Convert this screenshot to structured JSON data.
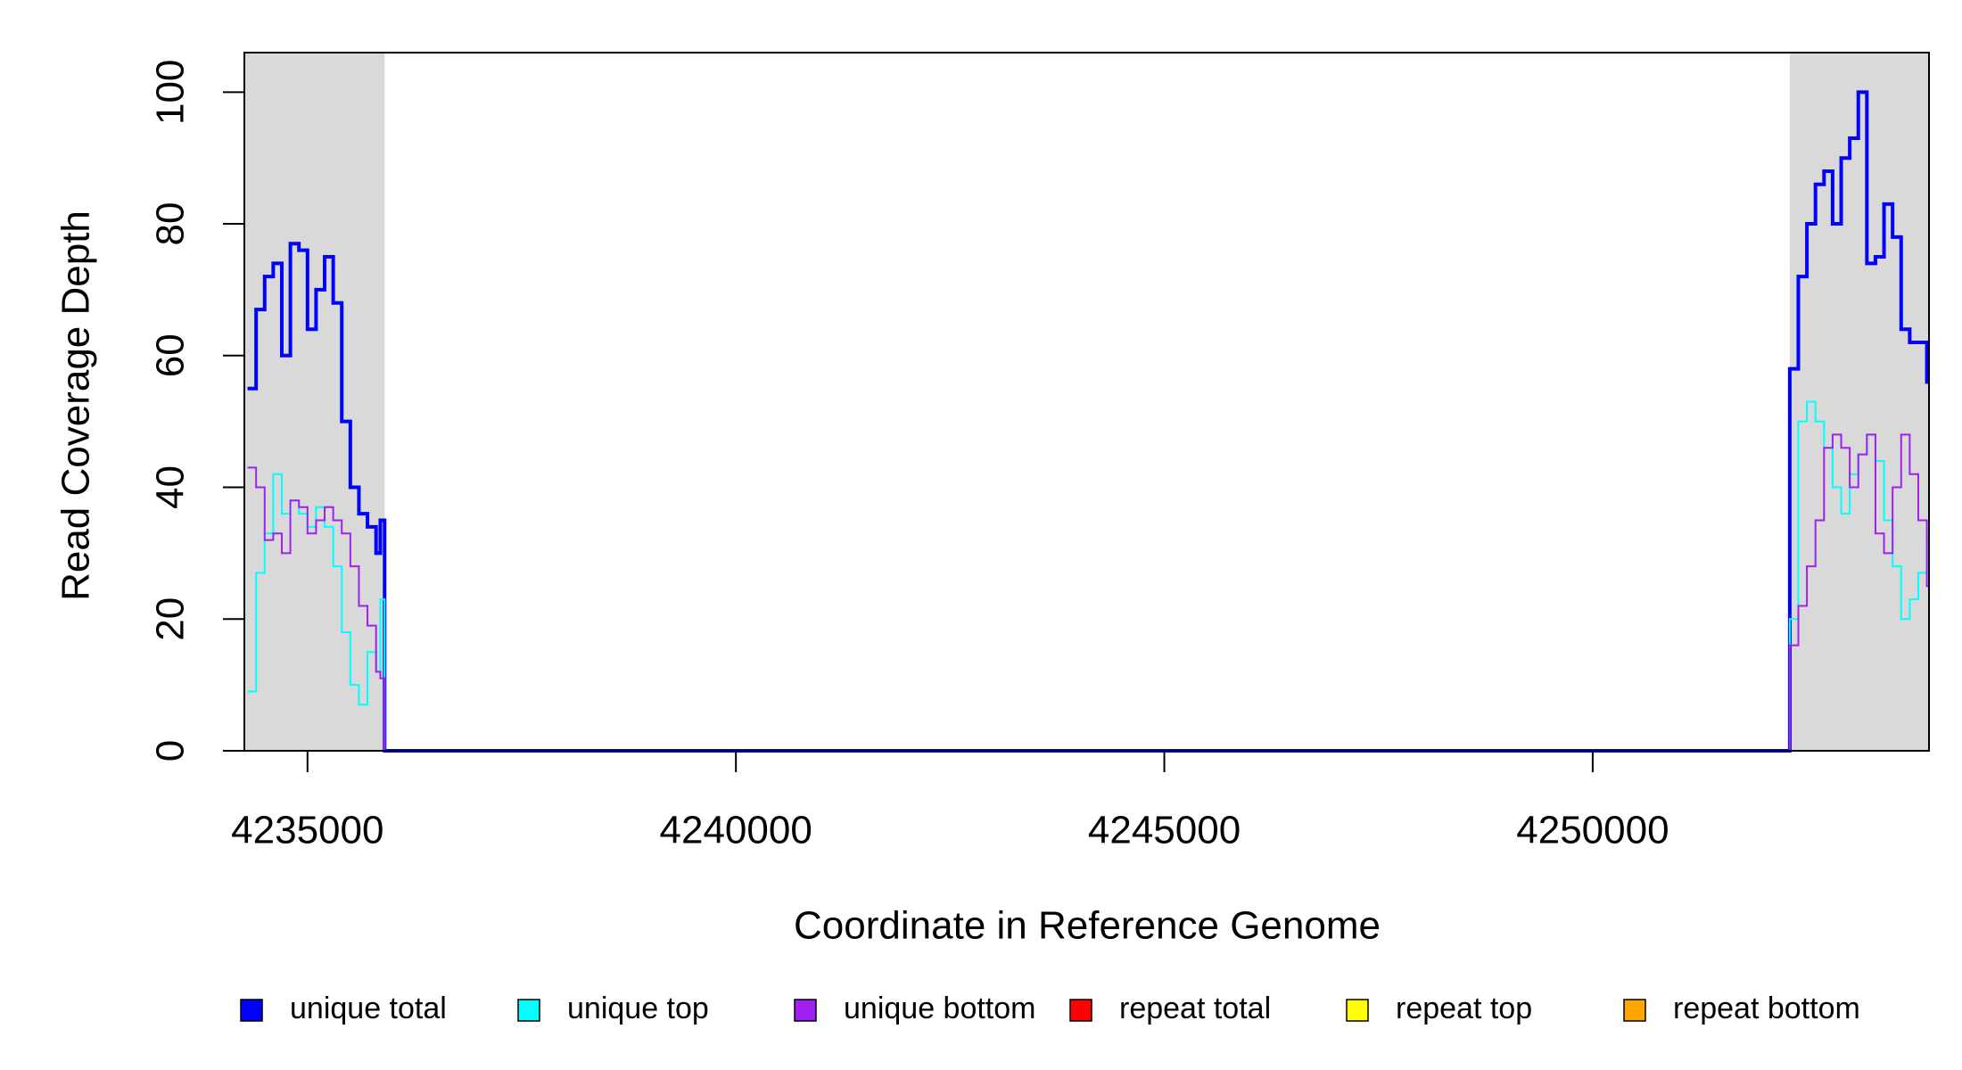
{
  "chart_data": {
    "type": "line",
    "step": true,
    "xlabel": "Coordinate in Reference Genome",
    "ylabel": "Read Coverage Depth",
    "xlim": [
      4234263,
      4253925
    ],
    "ylim": [
      0,
      106
    ],
    "xticks": [
      4235000,
      4240000,
      4245000,
      4250000
    ],
    "yticks": [
      0,
      20,
      40,
      60,
      80,
      100
    ],
    "shaded_regions": [
      [
        4234263,
        4235900
      ],
      [
        4252300,
        4253925
      ]
    ],
    "shade_color": "#d9d9d9",
    "legend": "bottom",
    "x": [
      4234300,
      4234400,
      4234500,
      4234600,
      4234700,
      4234800,
      4234900,
      4235000,
      4235100,
      4235200,
      4235300,
      4235400,
      4235500,
      4235600,
      4235700,
      4235800,
      4235850,
      4235900,
      4252300,
      4252400,
      4252500,
      4252600,
      4252700,
      4252800,
      4252900,
      4253000,
      4253100,
      4253200,
      4253300,
      4253400,
      4253500,
      4253600,
      4253700,
      4253800,
      4253900
    ],
    "series": [
      {
        "name": "unique total",
        "color": "#0000ff",
        "width": 4,
        "values": [
          55,
          67,
          72,
          74,
          60,
          77,
          76,
          64,
          70,
          75,
          68,
          50,
          40,
          36,
          34,
          30,
          35,
          0,
          58,
          72,
          80,
          86,
          88,
          80,
          90,
          93,
          100,
          74,
          75,
          83,
          78,
          64,
          62,
          62,
          56
        ]
      },
      {
        "name": "unique top",
        "color": "#00ffff",
        "width": 2,
        "values": [
          9,
          27,
          33,
          42,
          36,
          38,
          36,
          34,
          37,
          34,
          28,
          18,
          10,
          7,
          15,
          12,
          23,
          0,
          20,
          50,
          53,
          50,
          46,
          40,
          36,
          42,
          45,
          48,
          44,
          35,
          28,
          20,
          23,
          27,
          32
        ]
      },
      {
        "name": "unique bottom",
        "color": "#a020f0",
        "width": 2,
        "values": [
          43,
          40,
          32,
          33,
          30,
          38,
          37,
          33,
          35,
          37,
          35,
          33,
          28,
          22,
          19,
          12,
          11,
          0,
          16,
          22,
          28,
          35,
          46,
          48,
          46,
          40,
          45,
          48,
          33,
          30,
          40,
          48,
          42,
          35,
          25
        ]
      },
      {
        "name": "repeat total",
        "color": "#ff0000",
        "width": 2,
        "values": [
          0,
          0,
          0,
          0,
          0,
          0,
          0,
          0,
          0,
          0,
          0,
          0,
          0,
          0,
          0,
          0,
          0,
          0,
          0,
          0,
          0,
          0,
          0,
          0,
          0,
          0,
          0,
          0,
          0,
          0,
          0,
          0,
          0,
          0,
          0
        ]
      },
      {
        "name": "repeat top",
        "color": "#ffff00",
        "width": 2,
        "values": [
          0,
          0,
          0,
          0,
          0,
          0,
          0,
          0,
          0,
          0,
          0,
          0,
          0,
          0,
          0,
          0,
          0,
          0,
          0,
          0,
          0,
          0,
          0,
          0,
          0,
          0,
          0,
          0,
          0,
          0,
          0,
          0,
          0,
          0,
          0
        ]
      },
      {
        "name": "repeat bottom",
        "color": "#ffa500",
        "width": 2,
        "values": [
          0,
          0,
          0,
          0,
          0,
          0,
          0,
          0,
          0,
          0,
          0,
          0,
          0,
          0,
          0,
          0,
          0,
          0,
          0,
          0,
          0,
          0,
          0,
          0,
          0,
          0,
          0,
          0,
          0,
          0,
          0,
          0,
          0,
          0,
          0
        ]
      }
    ]
  }
}
